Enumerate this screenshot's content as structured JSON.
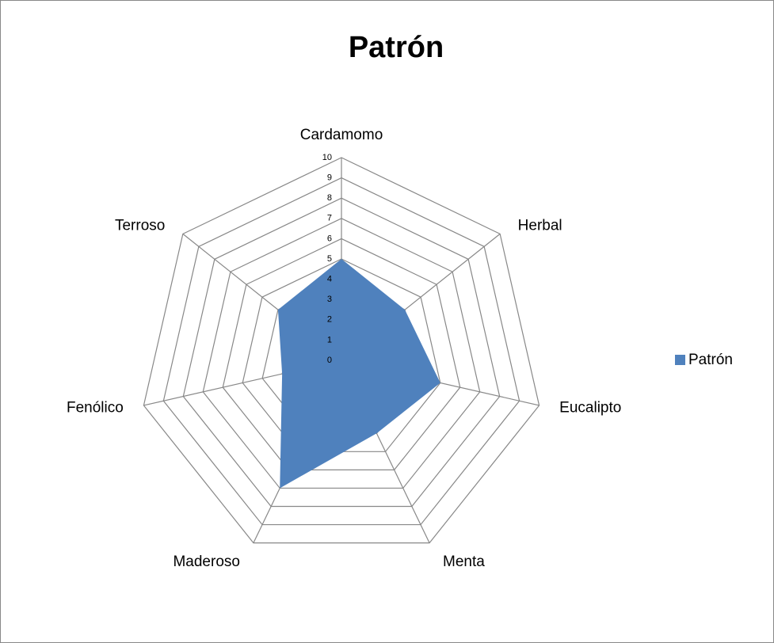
{
  "chart_data": {
    "type": "radar",
    "title": "Patrón",
    "categories": [
      "Cardamomo",
      "Herbal",
      "Eucalipto",
      "Menta",
      "Maderoso",
      "Fenólico",
      "Terroso"
    ],
    "series": [
      {
        "name": "Patrón",
        "color": "#4f81bd",
        "values": [
          5,
          4,
          5,
          4,
          7,
          3,
          4
        ]
      }
    ],
    "ylim": [
      0,
      10
    ],
    "yticks": [
      0,
      1,
      2,
      3,
      4,
      5,
      6,
      7,
      8,
      9,
      10
    ],
    "grid": true,
    "legend": "right"
  }
}
